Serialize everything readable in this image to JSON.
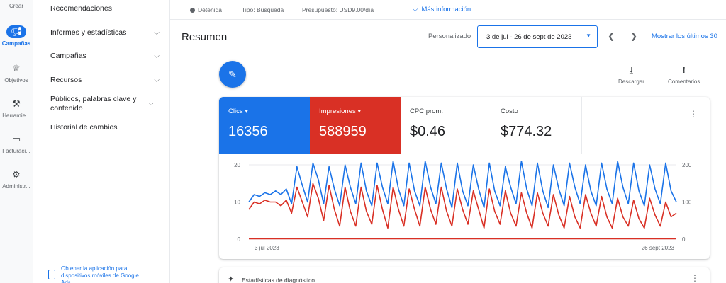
{
  "rail": {
    "create": "Crear",
    "items": [
      {
        "label": "Campañas",
        "icon": "megaphone-icon"
      },
      {
        "label": "Objetivos",
        "icon": "trophy-icon"
      },
      {
        "label": "Herramie...",
        "icon": "tools-icon"
      },
      {
        "label": "Facturaci...",
        "icon": "credit-card-icon"
      },
      {
        "label": "Administr...",
        "icon": "gear-icon"
      }
    ]
  },
  "nav": {
    "items": [
      {
        "label": "Recomendaciones"
      },
      {
        "label": "Informes y estadísticas"
      },
      {
        "label": "Campañas"
      },
      {
        "label": "Recursos"
      },
      {
        "label": "Públicos, palabras clave y contenido"
      },
      {
        "label": "Historial de cambios"
      }
    ],
    "footer": "Obtener la aplicación para dispositivos móviles de Google Ads"
  },
  "topbar": {
    "status": "Detenida",
    "type": "Tipo: Búsqueda",
    "budget": "Presupuesto: USD9.00/día",
    "more": "Más información"
  },
  "header": {
    "title": "Resumen",
    "custom_label": "Personalizado",
    "date_range": "3 de jul - 26 de sept de 2023",
    "show_last": "Mostrar los últimos 30"
  },
  "tools": {
    "download": "Descargar",
    "comments": "Comentarios"
  },
  "metrics": [
    {
      "name": "Clics",
      "value": "16356"
    },
    {
      "name": "Impresiones",
      "value": "588959"
    },
    {
      "name": "CPC prom.",
      "value": "$0.46"
    },
    {
      "name": "Costo",
      "value": "$774.32"
    }
  ],
  "diagnostics": "Estadísticas de diagnóstico",
  "colors": {
    "blue": "#1a73e8",
    "red": "#d93025"
  },
  "chart_data": {
    "type": "line",
    "x_start": "3 jul 2023",
    "x_end": "26 sept 2023",
    "left_axis": {
      "ticks": [
        "0",
        "10",
        "20"
      ],
      "ylim": [
        0,
        20
      ]
    },
    "right_axis": {
      "ticks": [
        "0",
        "100",
        "200"
      ],
      "ylim": [
        0,
        200
      ]
    },
    "series": [
      {
        "color": "#1a73e8",
        "axis": "right",
        "values": [
          100,
          120,
          115,
          125,
          120,
          130,
          120,
          135,
          95,
          195,
          145,
          100,
          205,
          160,
          95,
          195,
          135,
          90,
          200,
          140,
          95,
          205,
          130,
          90,
          205,
          140,
          95,
          210,
          135,
          90,
          205,
          130,
          90,
          210,
          140,
          95,
          205,
          135,
          85,
          205,
          130,
          90,
          200,
          135,
          85,
          205,
          130,
          90,
          195,
          140,
          95,
          210,
          135,
          90,
          205,
          130,
          85,
          200,
          135,
          90,
          205,
          140,
          95,
          200,
          130,
          90,
          205,
          135,
          95,
          210,
          140,
          95,
          205,
          130,
          90,
          200,
          135,
          95,
          205,
          130,
          100
        ]
      },
      {
        "color": "#d93025",
        "axis": "right",
        "values": [
          80,
          100,
          95,
          105,
          100,
          100,
          90,
          105,
          70,
          140,
          100,
          60,
          150,
          110,
          50,
          145,
          80,
          35,
          140,
          75,
          35,
          140,
          75,
          40,
          145,
          80,
          30,
          140,
          80,
          35,
          135,
          80,
          35,
          140,
          80,
          40,
          140,
          75,
          35,
          135,
          80,
          40,
          130,
          80,
          30,
          135,
          75,
          40,
          130,
          70,
          35,
          125,
          70,
          30,
          125,
          70,
          35,
          120,
          65,
          30,
          115,
          60,
          30,
          120,
          70,
          35,
          115,
          60,
          30,
          110,
          60,
          35,
          105,
          55,
          30,
          110,
          65,
          35,
          100,
          60,
          70
        ]
      },
      {
        "color": "#d93025",
        "axis": "left",
        "values": [
          0.1,
          0.1
        ]
      }
    ]
  }
}
